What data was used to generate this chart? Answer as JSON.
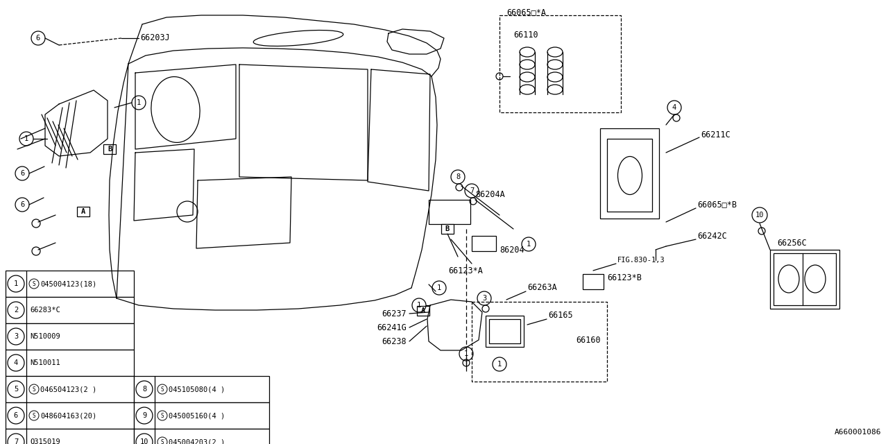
{
  "bg_color": "#ffffff",
  "line_color": "#000000",
  "fig_number": "A660001086",
  "parts_table": [
    {
      "num": 1,
      "code": "S045004123(18)"
    },
    {
      "num": 2,
      "code": "66283*C"
    },
    {
      "num": 3,
      "code": "N510009"
    },
    {
      "num": 4,
      "code": "N510011"
    },
    {
      "num": 5,
      "code": "S046504123(2 )",
      "num2": 8,
      "code2": "S045105080(4 )"
    },
    {
      "num": 6,
      "code": "S048604163(20)",
      "num2": 9,
      "code2": "S045005160(4 )"
    },
    {
      "num": 7,
      "code": "Q315019",
      "num2": 10,
      "code2": "S045004203(2 )"
    }
  ]
}
